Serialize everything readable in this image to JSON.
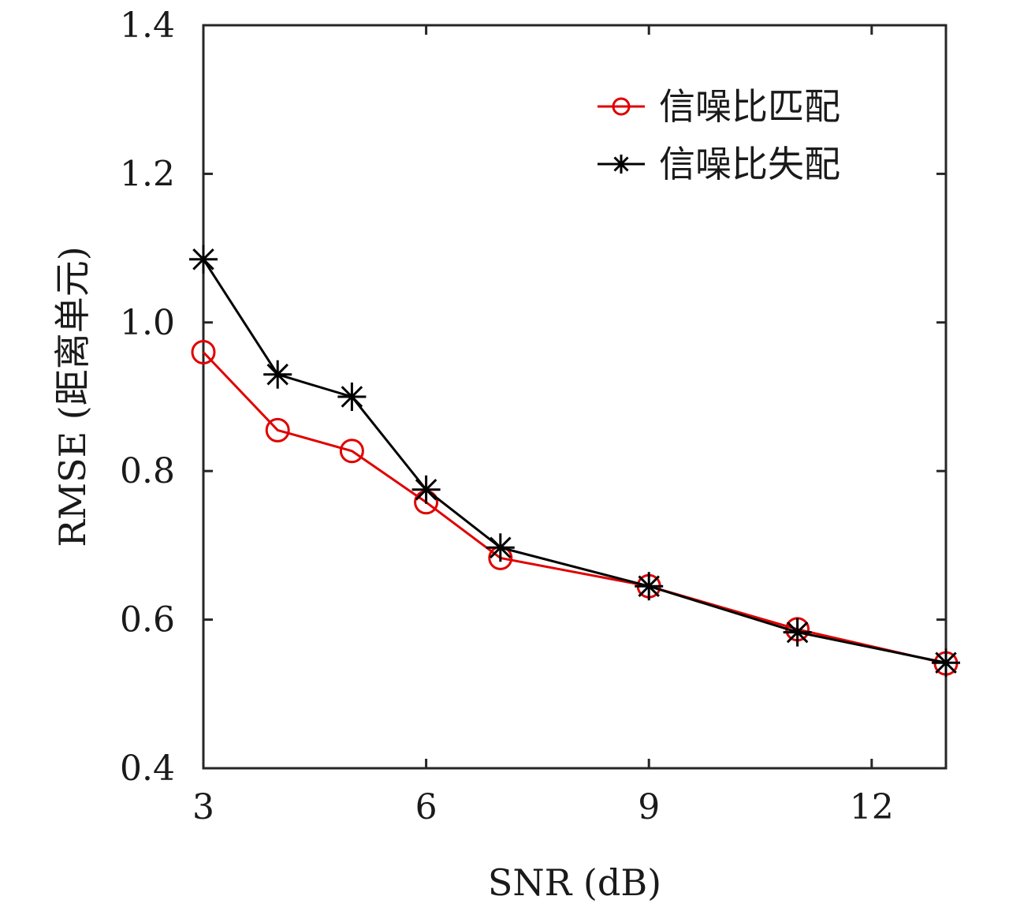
{
  "chart_data": {
    "type": "line",
    "xlabel": "SNR (dB)",
    "ylabel": "RMSE (距离单元)",
    "xlim": [
      3,
      13
    ],
    "ylim": [
      0.4,
      1.4
    ],
    "xticks": [
      3,
      6,
      9,
      12
    ],
    "xtick_labels": [
      "3",
      "6",
      "9",
      "12"
    ],
    "yticks": [
      0.4,
      0.6,
      0.8,
      1.0,
      1.2,
      1.4
    ],
    "ytick_labels": [
      "0.4",
      "0.6",
      "0.8",
      "1.0",
      "1.2",
      "1.4"
    ],
    "grid": false,
    "legend_position": "top-right",
    "x": [
      3,
      4,
      5,
      6,
      7,
      9,
      11,
      13
    ],
    "series": [
      {
        "name": "信噪比匹配",
        "color": "#e00000",
        "marker": "circle",
        "values": [
          0.96,
          0.855,
          0.827,
          0.758,
          0.683,
          0.645,
          0.587,
          0.541
        ]
      },
      {
        "name": "信噪比失配",
        "color": "#000000",
        "marker": "asterisk",
        "values": [
          1.085,
          0.93,
          0.9,
          0.775,
          0.697,
          0.645,
          0.583,
          0.542
        ]
      }
    ]
  }
}
